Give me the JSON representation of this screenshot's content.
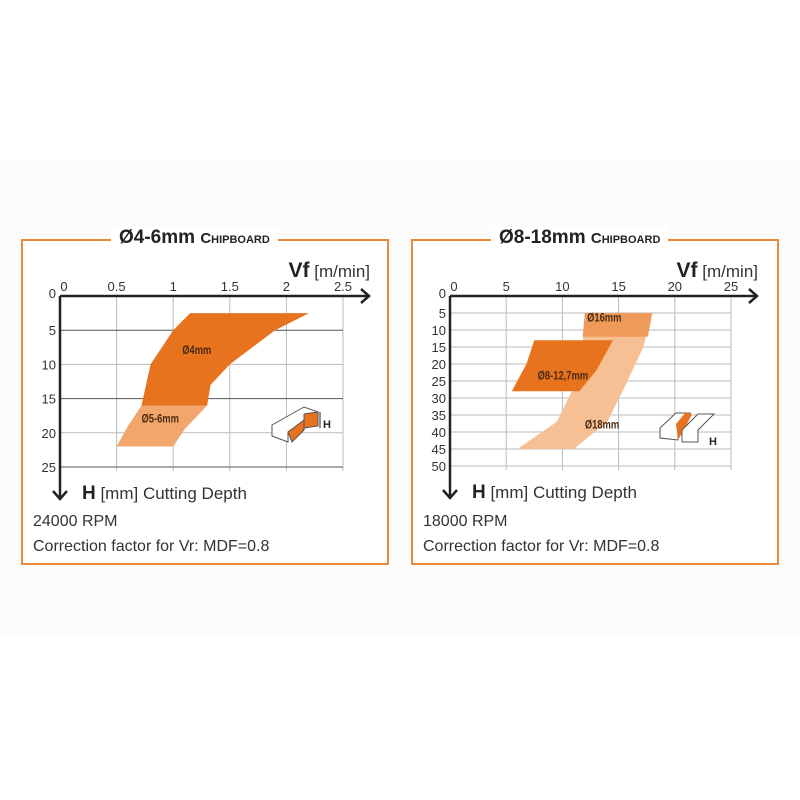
{
  "colors": {
    "border": "#ec8a3a",
    "dark": "#e8731e",
    "medium": "#f09a5a",
    "light": "#f6bf94"
  },
  "chart_data": [
    {
      "type": "area",
      "title": "Ø4-6mm",
      "subtitle": "Chipboard",
      "xlabel_main": "Vf",
      "xlabel_unit": "[m/min]",
      "ylabel_main": "H",
      "ylabel_unit": "[mm] Cutting Depth",
      "xlim": [
        0,
        2.5
      ],
      "ylim": [
        0,
        25
      ],
      "xticks": [
        "0",
        "0.5",
        "1",
        "1.5",
        "2",
        "2.5"
      ],
      "xtick_values": [
        0,
        0.5,
        1,
        1.5,
        2,
        2.5
      ],
      "yticks": [
        "0",
        "5",
        "10",
        "15",
        "20",
        "25"
      ],
      "ytick_values": [
        0,
        5,
        10,
        15,
        20,
        25
      ],
      "regions": [
        {
          "name": "Ø4mm",
          "color": "#e8731e",
          "points": [
            [
              1.15,
              2.5
            ],
            [
              2.2,
              2.5
            ],
            [
              1.9,
              5
            ],
            [
              1.5,
              10
            ],
            [
              1.33,
              13
            ],
            [
              1.3,
              16
            ],
            [
              0.72,
              16
            ],
            [
              0.8,
              10
            ],
            [
              1,
              5
            ]
          ],
          "label_at": [
            1.08,
            8.5
          ]
        },
        {
          "name": "Ø5-6mm",
          "color": "#f3a66c",
          "points": [
            [
              0.72,
              16
            ],
            [
              1.3,
              16
            ],
            [
              1.1,
              19.5
            ],
            [
              1,
              22
            ],
            [
              0.5,
              22
            ],
            [
              0.6,
              19
            ]
          ],
          "label_at": [
            0.72,
            18.5
          ]
        }
      ],
      "rpm": "24000 RPM",
      "note": "Correction factor for Vr: MDF=0.8"
    },
    {
      "type": "area",
      "title": "Ø8-18mm",
      "subtitle": "Chipboard",
      "xlabel_main": "Vf",
      "xlabel_unit": "[m/min]",
      "ylabel_main": "H",
      "ylabel_unit": "[mm] Cutting Depth",
      "xlim": [
        0,
        25
      ],
      "ylim": [
        0,
        50
      ],
      "xticks": [
        "0",
        "5",
        "10",
        "15",
        "20",
        "25"
      ],
      "xtick_values": [
        0,
        5,
        10,
        15,
        20,
        25
      ],
      "yticks": [
        "0",
        "5",
        "10",
        "15",
        "20",
        "25",
        "30",
        "35",
        "40",
        "45",
        "50"
      ],
      "ytick_values": [
        0,
        5,
        10,
        15,
        20,
        25,
        30,
        35,
        40,
        45,
        50
      ],
      "regions": [
        {
          "name": "Ø18mm",
          "color": "#f6bf94",
          "points": [
            [
              12,
              5
            ],
            [
              18,
              5
            ],
            [
              17.2,
              15
            ],
            [
              15.5,
              27
            ],
            [
              14,
              37
            ],
            [
              11,
              45
            ],
            [
              6,
              45
            ],
            [
              9.5,
              37
            ],
            [
              11,
              27
            ],
            [
              11.8,
              15
            ]
          ],
          "label_at": [
            12,
            39
          ]
        },
        {
          "name": "Ø16mm",
          "color": "#f09a5a",
          "points": [
            [
              12,
              5
            ],
            [
              18,
              5
            ],
            [
              17.6,
              12
            ],
            [
              11.8,
              12
            ]
          ],
          "label_at": [
            12.2,
            7.5
          ]
        },
        {
          "name": "Ø8-12,7mm",
          "color": "#e8731e",
          "points": [
            [
              7.5,
              13
            ],
            [
              14.5,
              13
            ],
            [
              13,
              22
            ],
            [
              11.5,
              28
            ],
            [
              5.5,
              28
            ],
            [
              6.8,
              20
            ]
          ],
          "label_at": [
            7.8,
            24.5
          ]
        }
      ],
      "rpm": "18000 RPM",
      "note": "Correction factor for Vr: MDF=0.8"
    }
  ]
}
